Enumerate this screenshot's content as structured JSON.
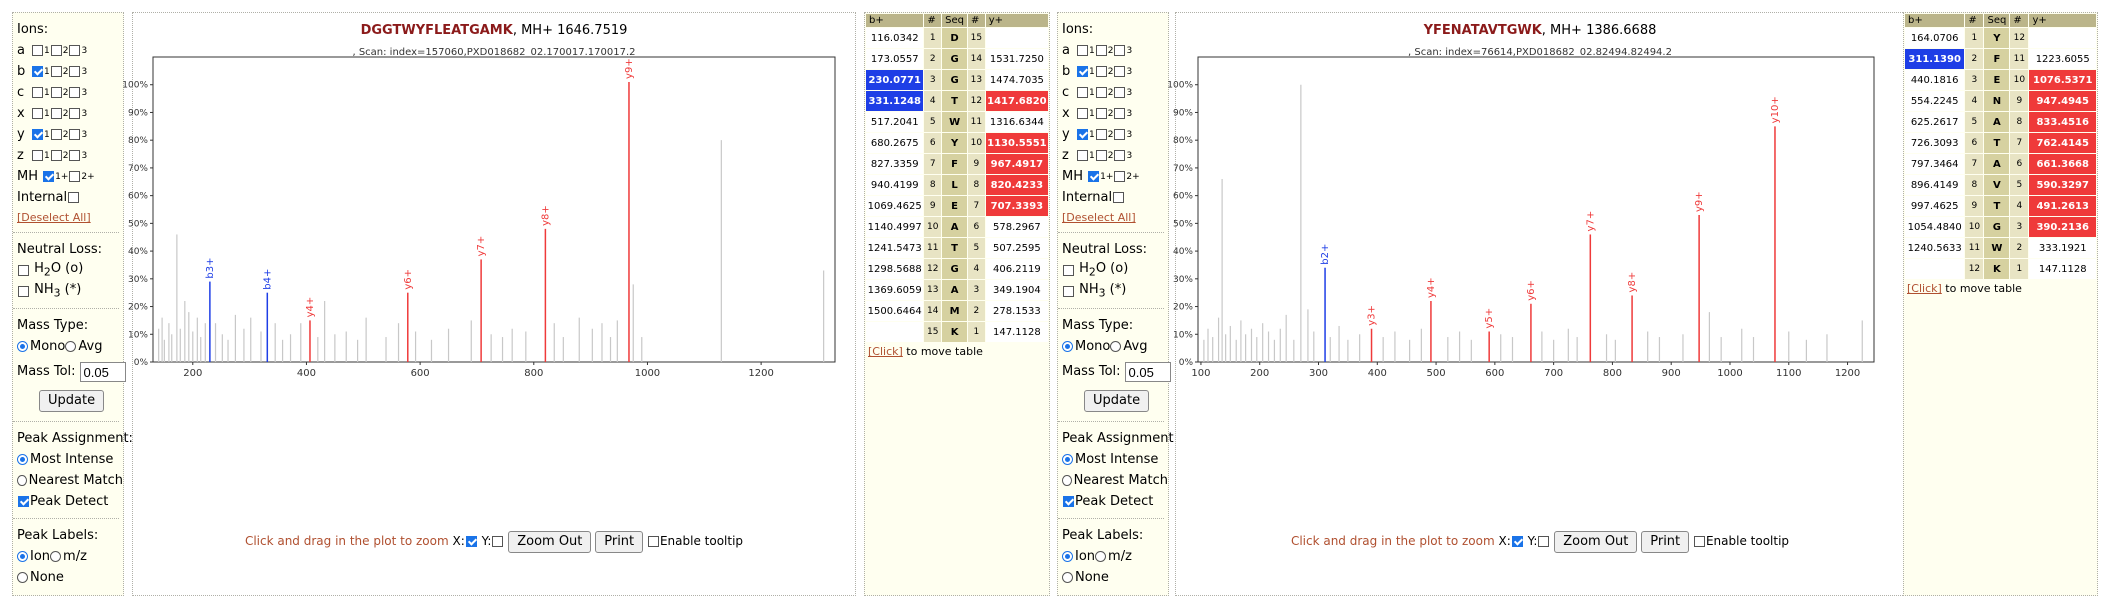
{
  "options_panel": {
    "ions_label": "Ions:",
    "ion_rows": [
      {
        "name": "a",
        "checked": [
          false,
          false,
          false
        ]
      },
      {
        "name": "b",
        "checked": [
          true,
          false,
          false
        ]
      },
      {
        "name": "c",
        "checked": [
          false,
          false,
          false
        ]
      },
      {
        "name": "x",
        "checked": [
          false,
          false,
          false
        ]
      },
      {
        "name": "y",
        "checked": [
          true,
          false,
          false
        ]
      },
      {
        "name": "z",
        "checked": [
          false,
          false,
          false
        ]
      }
    ],
    "charge_labels": [
      "1",
      "2",
      "3"
    ],
    "mh_label": "MH",
    "internal_label": "Internal",
    "deselect_all": "[Deselect All]",
    "neutral_loss_label": "Neutral Loss:",
    "h2o_label": "H",
    "h2o_sub": "2",
    "h2o_suffix": "O (o)",
    "nh3_label": "NH",
    "nh3_sub": "3",
    "nh3_suffix": " (*)",
    "mass_type_label": "Mass Type:",
    "mono_label": "Mono",
    "avg_label": "Avg",
    "mass_tol_label": "Mass Tol:",
    "mass_tol_value": "0.05",
    "update_label": "Update",
    "peak_assignment_label": "Peak Assignment:",
    "most_intense_label": "Most Intense",
    "nearest_match_label": "Nearest Match",
    "peak_detect_label": "Peak Detect",
    "peak_labels_label": "Peak Labels:",
    "ion_label": "Ion",
    "mz_label": "m/z",
    "none_label": "None"
  },
  "plot_controls": {
    "hint": "Click and drag in the plot to zoom",
    "x_label": "X:",
    "y_label": "Y:",
    "zoom_out": "Zoom Out",
    "print": "Print",
    "enable_tooltip": "Enable tooltip"
  },
  "move_table": {
    "link": "[Click]",
    "text": " to move table"
  },
  "colors": {
    "b_ion": "#1e3ee6",
    "y_ion": "#ef3a3a",
    "unassigned": "#c8c8c8",
    "title": "#8b1a1a",
    "hint": "#b05030"
  },
  "spectra": [
    {
      "peptide": "DGGTWYFLEATGAMK",
      "mh_text": ", MH+ 1646.7519",
      "scan_text": ", Scan: index=157060,PXD018682_02.170017.170017.2",
      "table_headers": [
        "b+",
        "#",
        "Seq",
        "#",
        "y+"
      ],
      "table_rows": [
        [
          "116.0342",
          "1",
          "D",
          "15",
          ""
        ],
        [
          "173.0557",
          "2",
          "G",
          "14",
          "1531.7250"
        ],
        [
          "230.0771",
          "3",
          "G",
          "13",
          "1474.7035"
        ],
        [
          "331.1248",
          "4",
          "T",
          "12",
          "1417.6820"
        ],
        [
          "517.2041",
          "5",
          "W",
          "11",
          "1316.6344"
        ],
        [
          "680.2675",
          "6",
          "Y",
          "10",
          "1130.5551"
        ],
        [
          "827.3359",
          "7",
          "F",
          "9",
          "967.4917"
        ],
        [
          "940.4199",
          "8",
          "L",
          "8",
          "820.4233"
        ],
        [
          "1069.4625",
          "9",
          "E",
          "7",
          "707.3393"
        ],
        [
          "1140.4997",
          "10",
          "A",
          "6",
          "578.2967"
        ],
        [
          "1241.5473",
          "11",
          "T",
          "5",
          "507.2595"
        ],
        [
          "1298.5688",
          "12",
          "G",
          "4",
          "406.2119"
        ],
        [
          "1369.6059",
          "13",
          "A",
          "3",
          "349.1904"
        ],
        [
          "1500.6464",
          "14",
          "M",
          "2",
          "278.1533"
        ],
        [
          "",
          "15",
          "K",
          "1",
          "147.1128"
        ]
      ],
      "b_highlight": [
        3,
        4
      ],
      "y_highlight": [
        7,
        8,
        9,
        10,
        12
      ],
      "chart_data": {
        "type": "bar",
        "xlim": [
          130,
          1330
        ],
        "ylim": [
          0,
          110
        ],
        "x_ticks": [
          200,
          400,
          600,
          800,
          1000,
          1200
        ],
        "y_ticks": [
          "0%",
          "10%",
          "20%",
          "30%",
          "40%",
          "50%",
          "60%",
          "70%",
          "80%",
          "90%",
          "100%"
        ],
        "annotated_peaks": [
          {
            "label": "b3+",
            "mz": 230.08,
            "intensity": 29,
            "ion": "b"
          },
          {
            "label": "b4+",
            "mz": 331.12,
            "intensity": 25,
            "ion": "b"
          },
          {
            "label": "y4+",
            "mz": 406.21,
            "intensity": 15,
            "ion": "y"
          },
          {
            "label": "y6+",
            "mz": 578.3,
            "intensity": 25,
            "ion": "y"
          },
          {
            "label": "y7+",
            "mz": 707.34,
            "intensity": 37,
            "ion": "y"
          },
          {
            "label": "y8+",
            "mz": 820.42,
            "intensity": 48,
            "ion": "y"
          },
          {
            "label": "y9+",
            "mz": 967.49,
            "intensity": 101,
            "ion": "y"
          }
        ],
        "unassigned_peaks": [
          [
            140,
            12
          ],
          [
            146,
            16
          ],
          [
            150,
            8
          ],
          [
            158,
            14
          ],
          [
            163,
            10
          ],
          [
            172,
            46
          ],
          [
            178,
            12
          ],
          [
            186,
            22
          ],
          [
            193,
            18
          ],
          [
            200,
            11
          ],
          [
            208,
            16
          ],
          [
            214,
            9
          ],
          [
            222,
            14
          ],
          [
            240,
            14
          ],
          [
            252,
            10
          ],
          [
            262,
            8
          ],
          [
            275,
            17
          ],
          [
            290,
            12
          ],
          [
            302,
            16
          ],
          [
            320,
            11
          ],
          [
            345,
            14
          ],
          [
            358,
            8
          ],
          [
            372,
            10
          ],
          [
            390,
            14
          ],
          [
            420,
            9
          ],
          [
            432,
            22
          ],
          [
            450,
            10
          ],
          [
            470,
            11
          ],
          [
            490,
            8
          ],
          [
            505,
            16
          ],
          [
            540,
            9
          ],
          [
            562,
            14
          ],
          [
            592,
            11
          ],
          [
            620,
            8
          ],
          [
            650,
            12
          ],
          [
            690,
            15
          ],
          [
            725,
            10
          ],
          [
            745,
            9
          ],
          [
            762,
            12
          ],
          [
            786,
            11
          ],
          [
            836,
            14
          ],
          [
            852,
            9
          ],
          [
            880,
            16
          ],
          [
            903,
            12
          ],
          [
            920,
            14
          ],
          [
            935,
            9
          ],
          [
            947,
            15
          ],
          [
            975,
            28
          ],
          [
            990,
            9
          ],
          [
            1130,
            80
          ],
          [
            1310,
            33
          ]
        ]
      }
    },
    {
      "peptide": "YFENATAVTGWK",
      "mh_text": ", MH+ 1386.6688",
      "scan_text": ", Scan: index=76614,PXD018682_02.82494.82494.2",
      "table_headers": [
        "b+",
        "#",
        "Seq",
        "#",
        "y+"
      ],
      "table_rows": [
        [
          "164.0706",
          "1",
          "Y",
          "12",
          ""
        ],
        [
          "311.1390",
          "2",
          "F",
          "11",
          "1223.6055"
        ],
        [
          "440.1816",
          "3",
          "E",
          "10",
          "1076.5371"
        ],
        [
          "554.2245",
          "4",
          "N",
          "9",
          "947.4945"
        ],
        [
          "625.2617",
          "5",
          "A",
          "8",
          "833.4516"
        ],
        [
          "726.3093",
          "6",
          "T",
          "7",
          "762.4145"
        ],
        [
          "797.3464",
          "7",
          "A",
          "6",
          "661.3668"
        ],
        [
          "896.4149",
          "8",
          "V",
          "5",
          "590.3297"
        ],
        [
          "997.4625",
          "9",
          "T",
          "4",
          "491.2613"
        ],
        [
          "1054.4840",
          "10",
          "G",
          "3",
          "390.2136"
        ],
        [
          "1240.5633",
          "11",
          "W",
          "2",
          "333.1921"
        ],
        [
          "",
          "12",
          "K",
          "1",
          "147.1128"
        ]
      ],
      "b_highlight": [
        2
      ],
      "y_highlight": [
        3,
        4,
        5,
        6,
        7,
        8,
        9,
        10
      ],
      "chart_data": {
        "type": "bar",
        "xlim": [
          95,
          1245
        ],
        "ylim": [
          0,
          110
        ],
        "x_ticks": [
          100,
          200,
          300,
          400,
          500,
          600,
          700,
          800,
          900,
          1000,
          1100,
          1200
        ],
        "y_ticks": [
          "0%",
          "10%",
          "20%",
          "30%",
          "40%",
          "50%",
          "60%",
          "70%",
          "80%",
          "90%",
          "100%"
        ],
        "annotated_peaks": [
          {
            "label": "b2+",
            "mz": 311.14,
            "intensity": 34,
            "ion": "b"
          },
          {
            "label": "y3+",
            "mz": 390.21,
            "intensity": 12,
            "ion": "y"
          },
          {
            "label": "y4+",
            "mz": 491.26,
            "intensity": 22,
            "ion": "y"
          },
          {
            "label": "y5+",
            "mz": 590.33,
            "intensity": 11,
            "ion": "y"
          },
          {
            "label": "y6+",
            "mz": 661.37,
            "intensity": 21,
            "ion": "y"
          },
          {
            "label": "y7+",
            "mz": 762.41,
            "intensity": 46,
            "ion": "y"
          },
          {
            "label": "y8+",
            "mz": 833.45,
            "intensity": 24,
            "ion": "y"
          },
          {
            "label": "y9+",
            "mz": 947.49,
            "intensity": 53,
            "ion": "y"
          },
          {
            "label": "y10+",
            "mz": 1076.54,
            "intensity": 85,
            "ion": "y"
          }
        ],
        "unassigned_peaks": [
          [
            105,
            8
          ],
          [
            112,
            12
          ],
          [
            120,
            9
          ],
          [
            130,
            16
          ],
          [
            136,
            66
          ],
          [
            142,
            10
          ],
          [
            150,
            13
          ],
          [
            160,
            8
          ],
          [
            168,
            15
          ],
          [
            176,
            10
          ],
          [
            186,
            12
          ],
          [
            195,
            9
          ],
          [
            205,
            14
          ],
          [
            215,
            11
          ],
          [
            225,
            8
          ],
          [
            235,
            12
          ],
          [
            245,
            17
          ],
          [
            258,
            8
          ],
          [
            270,
            100
          ],
          [
            282,
            19
          ],
          [
            292,
            11
          ],
          [
            320,
            9
          ],
          [
            335,
            13
          ],
          [
            350,
            8
          ],
          [
            370,
            10
          ],
          [
            410,
            9
          ],
          [
            430,
            11
          ],
          [
            455,
            8
          ],
          [
            475,
            12
          ],
          [
            520,
            9
          ],
          [
            540,
            11
          ],
          [
            560,
            8
          ],
          [
            610,
            10
          ],
          [
            630,
            9
          ],
          [
            680,
            11
          ],
          [
            700,
            8
          ],
          [
            725,
            12
          ],
          [
            740,
            9
          ],
          [
            790,
            10
          ],
          [
            805,
            8
          ],
          [
            860,
            11
          ],
          [
            880,
            9
          ],
          [
            920,
            10
          ],
          [
            965,
            18
          ],
          [
            985,
            9
          ],
          [
            1020,
            12
          ],
          [
            1040,
            9
          ],
          [
            1100,
            11
          ],
          [
            1130,
            8
          ],
          [
            1165,
            10
          ],
          [
            1225,
            15
          ]
        ]
      }
    }
  ]
}
